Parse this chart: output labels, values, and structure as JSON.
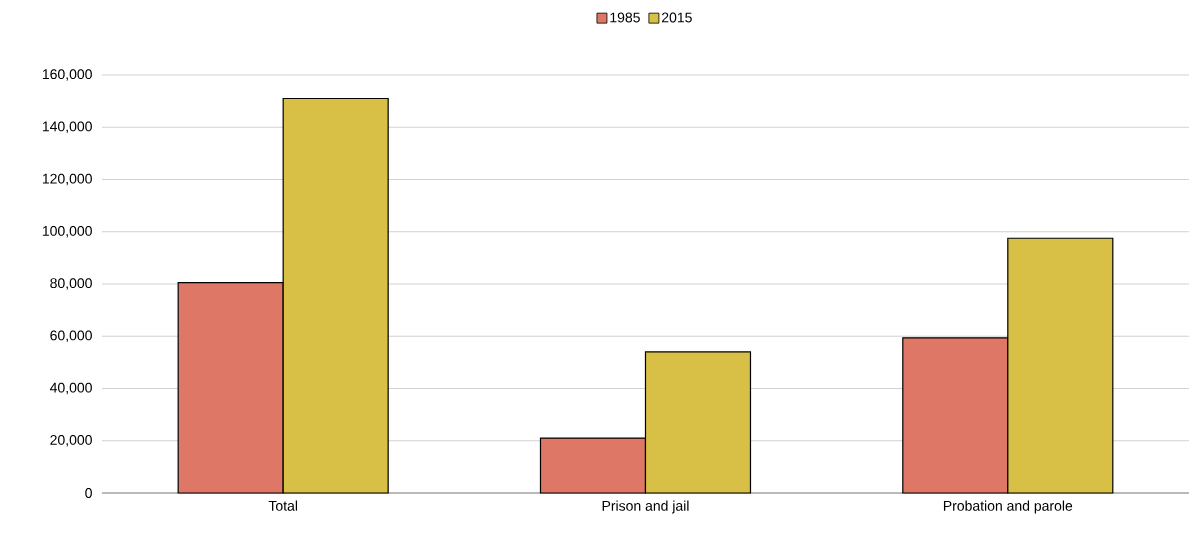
{
  "chart_data": {
    "type": "bar",
    "categories": [
      "Total",
      "Prison and jail",
      "Probation and parole"
    ],
    "series": [
      {
        "name": "1985",
        "color": "#de7765",
        "values": [
          80500,
          21000,
          59400
        ]
      },
      {
        "name": "2015",
        "color": "#d8bf45",
        "values": [
          151000,
          54000,
          97500
        ]
      }
    ],
    "ylim": [
      0,
      160000
    ],
    "yticks": [
      0,
      {
        "value": 20000,
        "label": "20,000"
      },
      {
        "value": 40000,
        "label": "40,000"
      },
      {
        "value": 60000,
        "label": "60,000"
      },
      {
        "value": 80000,
        "label": "80,000"
      },
      {
        "value": 100000,
        "label": "100,000"
      },
      {
        "value": 120000,
        "label": "120,000"
      },
      {
        "value": 140000,
        "label": "140,000"
      },
      {
        "value": 160000,
        "label": "160,000"
      }
    ],
    "grid": "y",
    "legend": "top"
  }
}
